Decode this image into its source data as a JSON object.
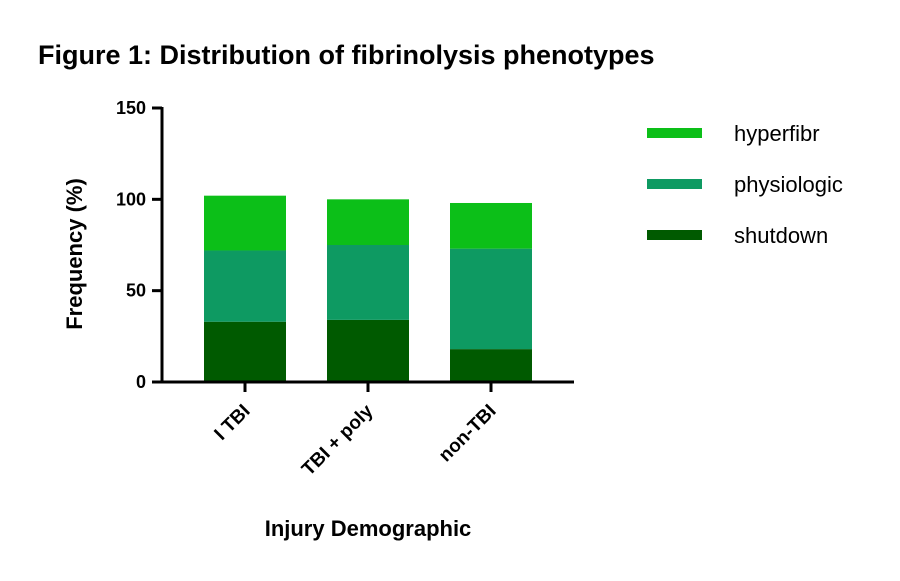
{
  "chart_data": {
    "type": "bar",
    "stacked": true,
    "title": "Figure 1: Distribution of fibrinolysis phenotypes",
    "xlabel": "Injury  Demographic",
    "ylabel": "Frequency  (%)",
    "ylim": [
      0,
      150
    ],
    "yticks": [
      0,
      50,
      100,
      150
    ],
    "grid": false,
    "legend_position": "right",
    "categories": [
      "I TBI",
      "TBI + poly",
      "non-TBI"
    ],
    "series": [
      {
        "name": "shutdown",
        "color": "#005a00",
        "values": [
          33,
          34,
          18
        ]
      },
      {
        "name": "physiologic",
        "color": "#0e9a62",
        "values": [
          39,
          41,
          55
        ]
      },
      {
        "name": "hyperfibr",
        "color": "#0cbf18",
        "values": [
          30,
          25,
          25
        ]
      }
    ],
    "legend_order": [
      "hyperfibr",
      "physiologic",
      "shutdown"
    ]
  }
}
